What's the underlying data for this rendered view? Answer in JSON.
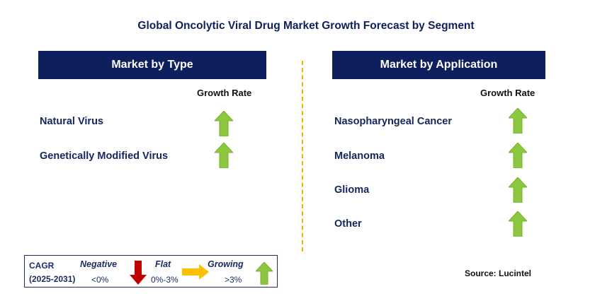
{
  "title": "Global Oncolytic Viral Drug Market Growth Forecast by Segment",
  "left_panel": {
    "header": "Market by Type",
    "growth_rate_label": "Growth Rate",
    "items": [
      {
        "label": "Natural Virus",
        "trend": "growing"
      },
      {
        "label": "Genetically Modified Virus",
        "trend": "growing"
      }
    ]
  },
  "right_panel": {
    "header": "Market by Application",
    "growth_rate_label": "Growth Rate",
    "items": [
      {
        "label": "Nasopharyngeal Cancer",
        "trend": "growing"
      },
      {
        "label": "Melanoma",
        "trend": "growing"
      },
      {
        "label": "Glioma",
        "trend": "growing"
      },
      {
        "label": "Other",
        "trend": "growing"
      }
    ]
  },
  "legend": {
    "cagr": "CAGR",
    "period": "(2025-2031)",
    "negative": "Negative",
    "negative_range": "<0%",
    "flat": "Flat",
    "flat_range": "0%-3%",
    "growing": "Growing",
    "growing_range": ">3%"
  },
  "source": "Source: Lucintel",
  "colors": {
    "header_bg": "#0d1f5c",
    "growing": "#8dc63f",
    "negative": "#c00000",
    "flat": "#ffc000",
    "divider": "#f0b400"
  }
}
